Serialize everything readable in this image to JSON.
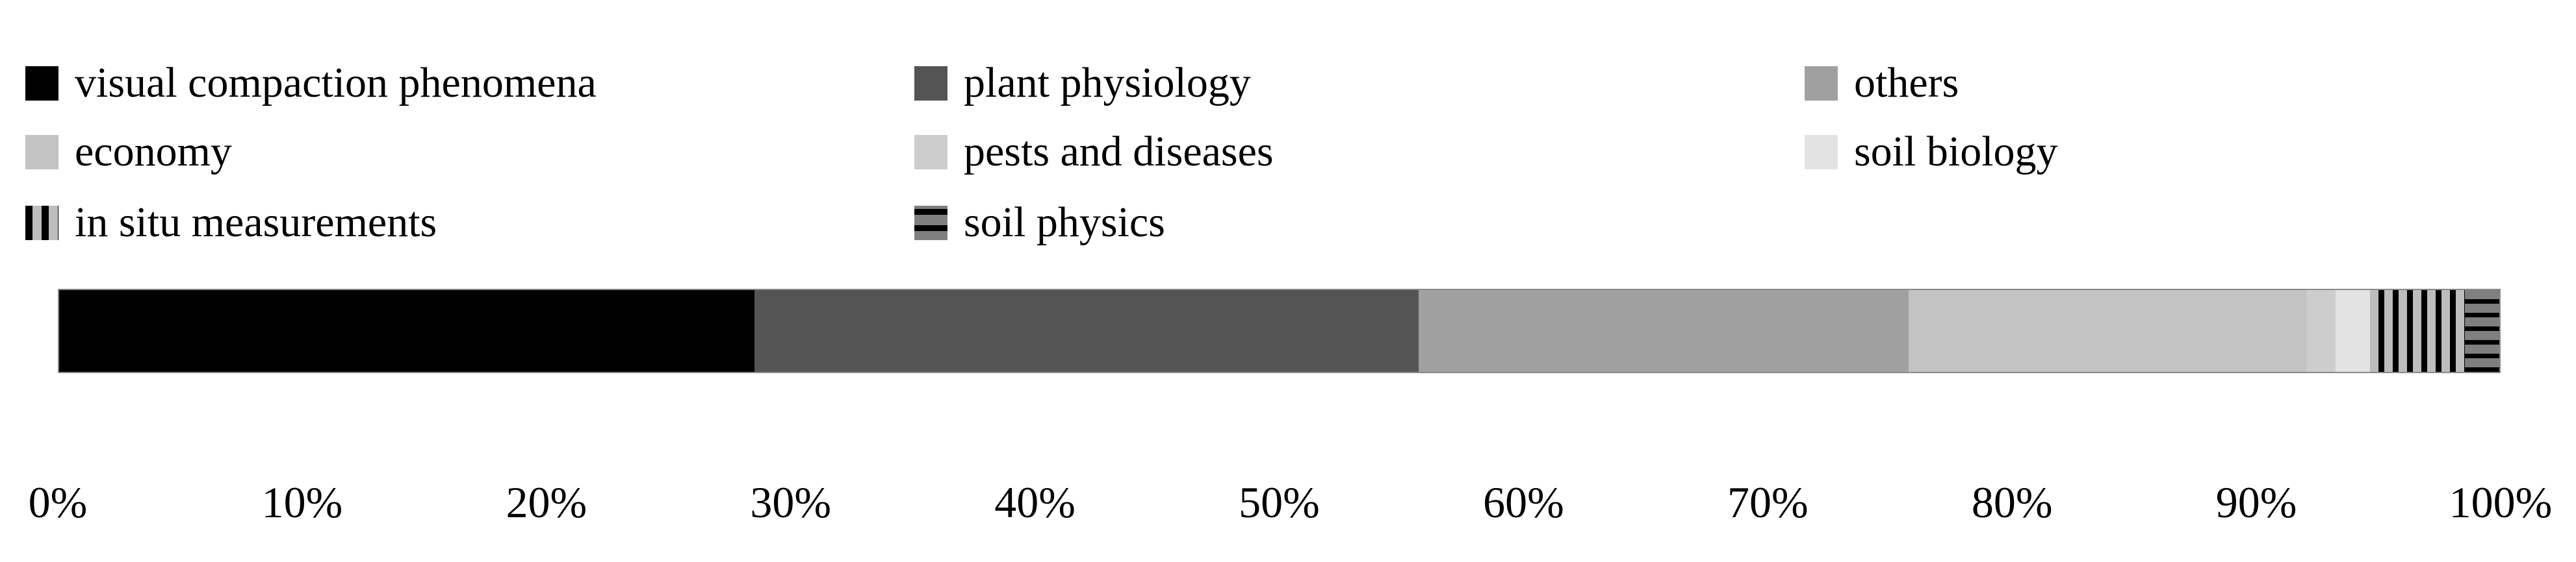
{
  "page": {
    "background": "#ffffff",
    "text_color": "#000000",
    "bar_border_color": "#8a8a8a"
  },
  "chart_data": {
    "type": "bar",
    "variant": "horizontal-stacked-100-percent",
    "title": "",
    "xlabel": "",
    "ylabel": "",
    "grid": false,
    "legend_position": "top",
    "x_range": [
      0,
      100
    ],
    "x_ticks": [
      "0%",
      "10%",
      "20%",
      "30%",
      "40%",
      "50%",
      "60%",
      "70%",
      "80%",
      "90%",
      "100%"
    ],
    "series": [
      {
        "name": "visual compaction phenomena",
        "value": 28.5,
        "color": "#000000",
        "pattern": "solid"
      },
      {
        "name": "plant physiology",
        "value": 27.2,
        "color": "#545454",
        "pattern": "solid"
      },
      {
        "name": "others",
        "value": 20.1,
        "color": "#a0a0a0",
        "pattern": "solid"
      },
      {
        "name": "economy",
        "value": 16.3,
        "color": "#c3c3c3",
        "pattern": "solid"
      },
      {
        "name": "pests and diseases",
        "value": 1.2,
        "color": "#cdcdcd",
        "pattern": "solid"
      },
      {
        "name": "soil biology",
        "value": 1.4,
        "color": "#e3e3e3",
        "pattern": "solid"
      },
      {
        "name": "in situ measurements",
        "value": 3.9,
        "color": "#bdbdbd",
        "pattern": "vertical-stripes"
      },
      {
        "name": "soil physics",
        "value": 1.4,
        "color": "#7f7f7f",
        "pattern": "horizontal-stripes"
      }
    ]
  },
  "legend": {
    "columns": [
      {
        "x": 39,
        "items": [
          {
            "label": "visual compaction phenomena",
            "series_index": 0
          },
          {
            "label": "economy",
            "series_index": 3
          },
          {
            "label": "in situ measurements",
            "series_index": 6
          }
        ]
      },
      {
        "x": 1407,
        "items": [
          {
            "label": "plant physiology",
            "series_index": 1
          },
          {
            "label": "pests and diseases",
            "series_index": 4
          },
          {
            "label": "soil physics",
            "series_index": 7
          }
        ]
      },
      {
        "x": 2777,
        "items": [
          {
            "label": "others",
            "series_index": 2
          },
          {
            "label": "soil biology",
            "series_index": 5
          }
        ]
      }
    ],
    "row_tops": [
      93,
      199,
      308
    ]
  }
}
